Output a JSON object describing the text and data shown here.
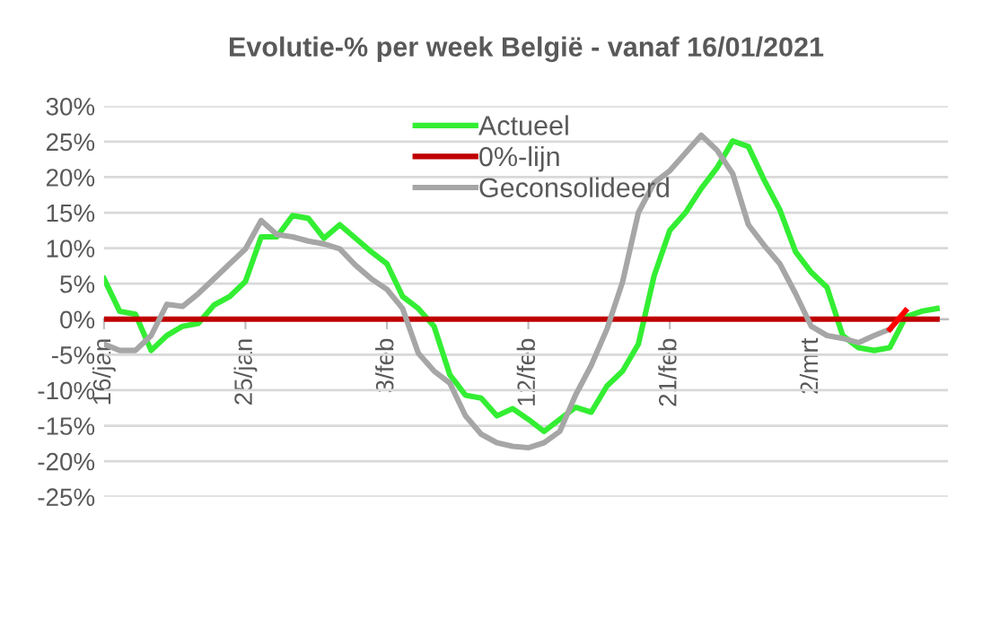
{
  "chart_data": {
    "type": "line",
    "title": "Evolutie-% per week België - vanaf 16/01/2021",
    "categories": [
      "16/jan",
      null,
      null,
      null,
      null,
      null,
      null,
      null,
      null,
      "25/jan",
      null,
      null,
      null,
      null,
      null,
      null,
      null,
      null,
      "3/feb",
      null,
      null,
      null,
      null,
      null,
      null,
      null,
      null,
      "12/feb",
      null,
      null,
      null,
      null,
      null,
      null,
      null,
      null,
      "21/feb",
      null,
      null,
      null,
      null,
      null,
      null,
      null,
      null,
      "2/mrt",
      null,
      null,
      null,
      null,
      null,
      null,
      null,
      null
    ],
    "series": [
      {
        "name": "Actueel",
        "color": "#33ee33",
        "values": [
          5.7,
          1.1,
          0.7,
          -4.4,
          -2.3,
          -1.0,
          -0.6,
          2.0,
          3.2,
          5.3,
          11.6,
          11.6,
          14.6,
          14.2,
          11.4,
          13.3,
          11.4,
          9.5,
          7.8,
          3.2,
          1.5,
          -1.0,
          -7.8,
          -10.7,
          -11.1,
          -13.6,
          -12.6,
          -14.1,
          -15.8,
          -14.1,
          -12.4,
          -13.1,
          -9.4,
          -7.3,
          -3.5,
          6.1,
          12.5,
          15.0,
          18.4,
          21.3,
          25.1,
          24.3,
          19.6,
          15.4,
          9.5,
          6.6,
          4.5,
          -2.3,
          -4.0,
          -4.4,
          -4.0,
          0.3,
          1.1,
          1.5
        ]
      },
      {
        "name": "0%-lijn",
        "color": "#c00000",
        "values": [
          0,
          0,
          0,
          0,
          0,
          0,
          0,
          0,
          0,
          0,
          0,
          0,
          0,
          0,
          0,
          0,
          0,
          0,
          0,
          0,
          0,
          0,
          0,
          0,
          0,
          0,
          0,
          0,
          0,
          0,
          0,
          0,
          0,
          0,
          0,
          0,
          0,
          0,
          0,
          0,
          0,
          0,
          0,
          0,
          0,
          0,
          0,
          0,
          0,
          0,
          0,
          0,
          0,
          0
        ]
      },
      {
        "name": "Geconsolideerd",
        "color": "#a6a6a6",
        "values": [
          -3.5,
          -4.4,
          -4.4,
          -2.3,
          2.1,
          1.8,
          3.6,
          5.7,
          7.8,
          9.9,
          13.9,
          11.9,
          11.6,
          11.0,
          10.6,
          9.9,
          7.6,
          5.7,
          4.2,
          1.5,
          -4.8,
          -7.3,
          -9.0,
          -13.6,
          -16.2,
          -17.4,
          -17.9,
          -18.1,
          -17.4,
          -15.8,
          -10.7,
          -6.5,
          -1.4,
          5.3,
          15.0,
          19.2,
          20.9,
          23.4,
          25.9,
          23.8,
          20.5,
          13.3,
          10.4,
          7.8,
          3.6,
          -1.0,
          -2.3,
          -2.7,
          -3.3,
          -2.3,
          -1.4,
          null,
          null,
          null
        ]
      },
      {
        "color": "#ff0000",
        "values": [
          null,
          null,
          null,
          null,
          null,
          null,
          null,
          null,
          null,
          null,
          null,
          null,
          null,
          null,
          null,
          null,
          null,
          null,
          null,
          null,
          null,
          null,
          null,
          null,
          null,
          null,
          null,
          null,
          null,
          null,
          null,
          null,
          null,
          null,
          null,
          null,
          null,
          null,
          null,
          null,
          null,
          null,
          null,
          null,
          null,
          null,
          null,
          null,
          null,
          null,
          -1.4,
          1.2,
          null,
          null
        ]
      }
    ],
    "ylim": [
      -25,
      30
    ],
    "yticks": [
      {
        "value": -25,
        "label": "-25%"
      },
      {
        "value": -20,
        "label": "-20%"
      },
      {
        "value": -15,
        "label": "-15%"
      },
      {
        "value": -10,
        "label": "-10%"
      },
      {
        "value": -5,
        "label": "-5%"
      },
      {
        "value": 0,
        "label": "0%"
      },
      {
        "value": 5,
        "label": "5%"
      },
      {
        "value": 10,
        "label": "10%"
      },
      {
        "value": 15,
        "label": "15%"
      },
      {
        "value": 20,
        "label": "20%"
      },
      {
        "value": 25,
        "label": "25%"
      },
      {
        "value": 30,
        "label": "30%"
      }
    ],
    "grid": "y",
    "legend": "top",
    "marker": "none",
    "line_style": "solid"
  }
}
